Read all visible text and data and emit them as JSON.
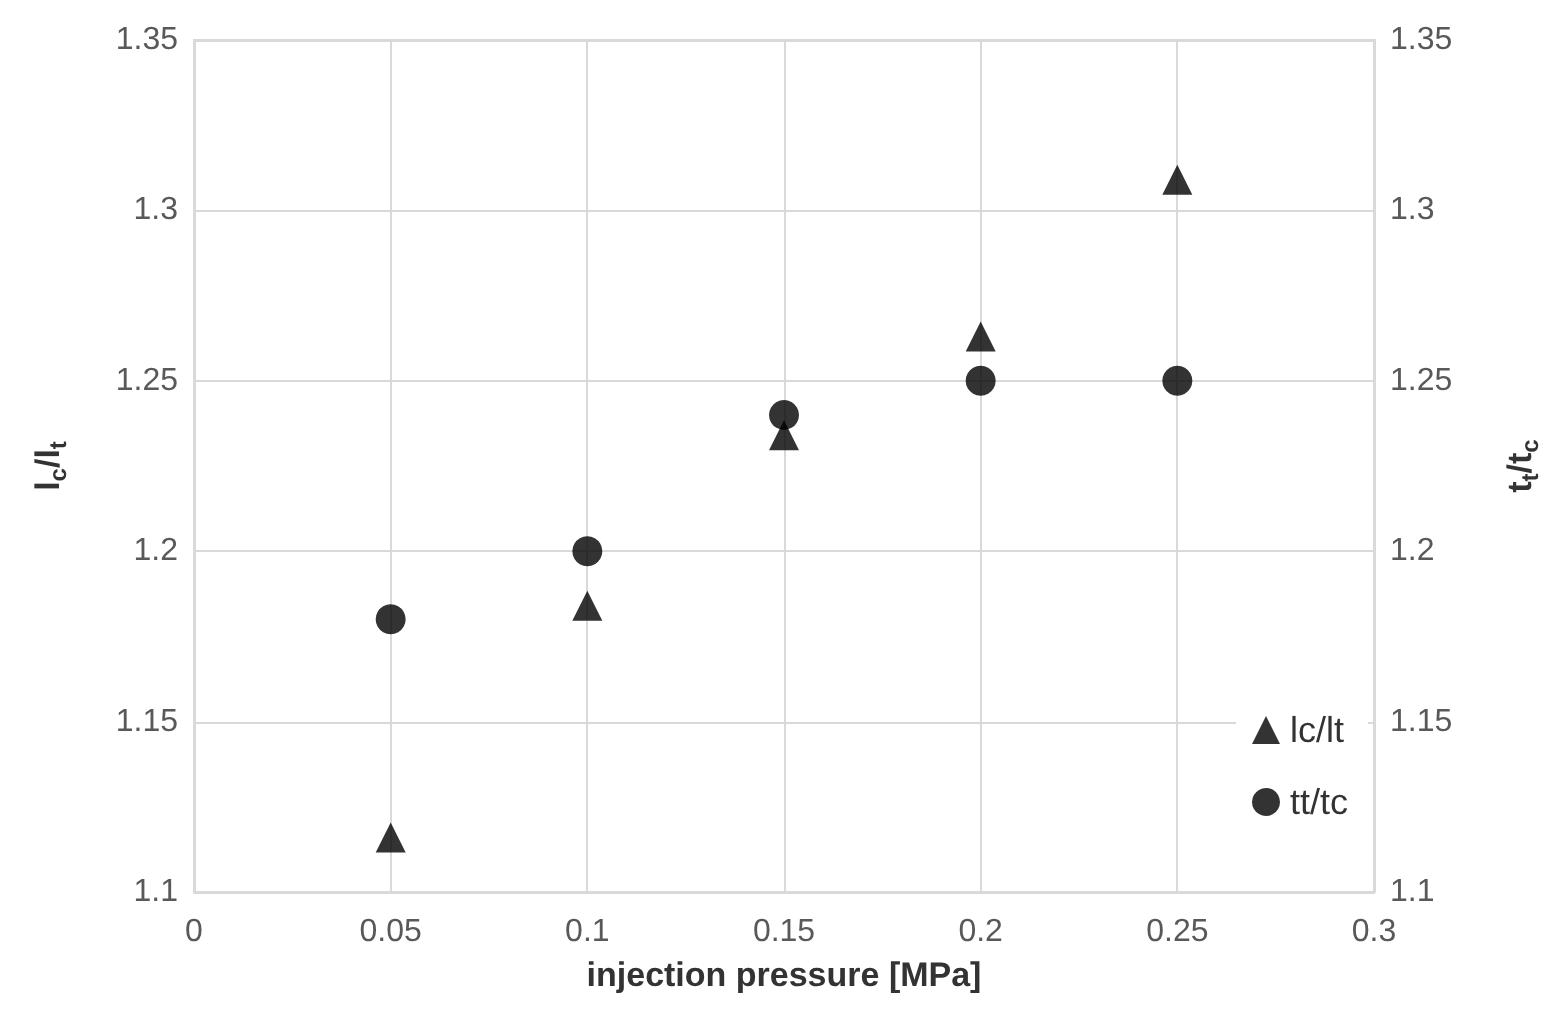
{
  "chart_data": {
    "type": "scatter",
    "xlabel": "injection pressure [MPa]",
    "ylabel": "l$_{c}$/l$_{t}$",
    "y2label": "t$_{t}$/t$_{c}$",
    "x": [
      0.05,
      0.1,
      0.15,
      0.2,
      0.25
    ],
    "series": [
      {
        "name": "lc/lt",
        "color": "#000000",
        "marker": "triangle",
        "values": [
          1.116,
          1.184,
          1.234,
          1.263,
          1.309
        ]
      },
      {
        "name": "tt/tc",
        "color": "#000000",
        "marker": "circle",
        "values": [
          1.18,
          1.2,
          1.24,
          1.25,
          1.25
        ]
      }
    ],
    "xlim": [
      0,
      0.3
    ],
    "xticks": [
      0,
      0.05,
      0.1,
      0.15,
      0.2,
      0.25,
      0.3
    ],
    "ylim": [
      1.1,
      1.35
    ],
    "yticks": [
      1.1,
      1.15,
      1.2,
      1.25,
      1.3,
      1.35
    ],
    "y2lim": [
      1.1,
      1.35
    ],
    "y2ticks": [
      1.1,
      1.15,
      1.2,
      1.25,
      1.3,
      1.35
    ],
    "grid": true,
    "legend": "bottom right"
  }
}
